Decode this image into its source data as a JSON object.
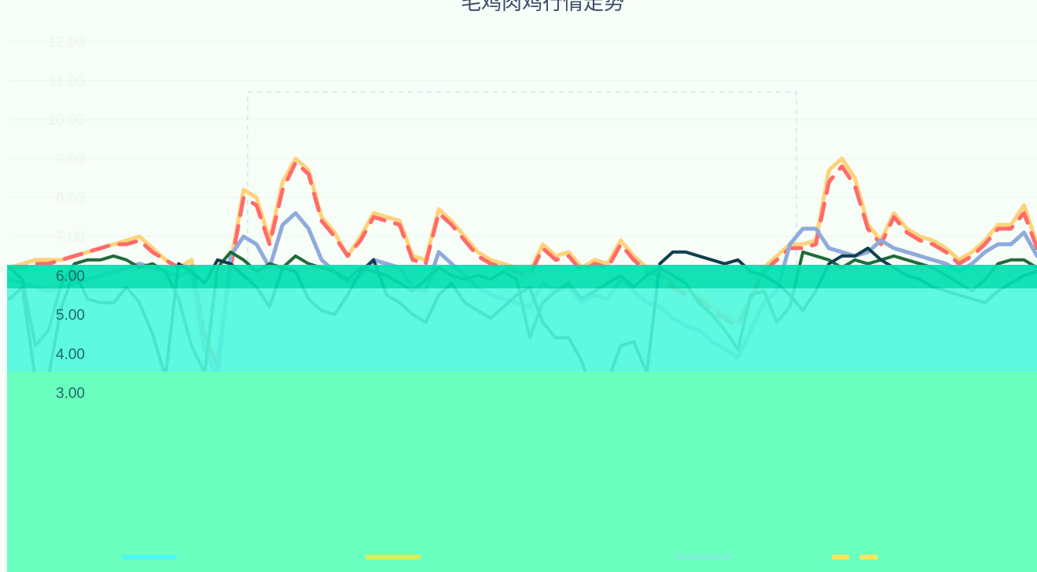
{
  "title": "毛鸡肉鸡行情走势",
  "chart_data": {
    "type": "line",
    "title": "毛鸡肉鸡行情走势",
    "xlabel": "",
    "ylabel": "",
    "ylim": [
      2,
      12
    ],
    "y_ticks": [
      "3.00",
      "4.00",
      "5.00",
      "6.00",
      "7.00",
      "8.00",
      "9.00",
      "10.00",
      "11.00",
      "12.00"
    ],
    "grid": true,
    "legend_position": "bottom",
    "series": [
      {
        "name": "",
        "color": "#ffd27a",
        "dash": false,
        "values": [
          6.2,
          6.3,
          6.4,
          6.4,
          6.4,
          6.5,
          6.6,
          6.7,
          6.8,
          6.9,
          7.0,
          6.7,
          6.4,
          6.2,
          6.4,
          4.5,
          3.8,
          6.3,
          8.2,
          8.0,
          6.9,
          8.4,
          9.0,
          8.7,
          7.5,
          7.1,
          6.5,
          7.0,
          7.6,
          7.5,
          7.4,
          6.5,
          6.4,
          7.7,
          7.4,
          7.0,
          6.6,
          6.4,
          6.3,
          6.2,
          6.1,
          6.8,
          6.5,
          6.6,
          6.2,
          6.4,
          6.3,
          6.9,
          6.5,
          6.2,
          6.1,
          5.8,
          5.6,
          5.5,
          5.2,
          5.0,
          4.8,
          5.5,
          6.2,
          6.5,
          6.8,
          6.8,
          6.9,
          8.7,
          9.0,
          8.5,
          7.3,
          6.9,
          7.6,
          7.2,
          7.0,
          6.9,
          6.7,
          6.4,
          6.6,
          6.9,
          7.3,
          7.3,
          7.8,
          6.8
        ]
      },
      {
        "name": "",
        "color": "#ff6b6b",
        "dash": true,
        "values": [
          6.2,
          6.2,
          6.3,
          6.3,
          6.4,
          6.5,
          6.6,
          6.7,
          6.8,
          6.8,
          6.9,
          6.6,
          6.4,
          6.2,
          6.3,
          4.4,
          3.7,
          6.2,
          8.0,
          7.8,
          6.8,
          8.2,
          8.9,
          8.6,
          7.4,
          7.0,
          6.5,
          6.9,
          7.5,
          7.4,
          7.3,
          6.4,
          6.3,
          7.6,
          7.3,
          6.9,
          6.5,
          6.3,
          6.2,
          6.1,
          6.0,
          6.7,
          6.4,
          6.5,
          6.1,
          6.3,
          6.2,
          6.8,
          6.4,
          6.1,
          6.0,
          5.7,
          5.5,
          5.4,
          5.1,
          4.9,
          4.7,
          5.4,
          6.1,
          6.4,
          6.7,
          6.7,
          6.8,
          8.4,
          8.8,
          8.3,
          7.2,
          6.8,
          7.5,
          7.1,
          6.9,
          6.8,
          6.6,
          6.3,
          6.5,
          6.8,
          7.2,
          7.2,
          7.6,
          6.7
        ]
      },
      {
        "name": "",
        "color": "#8faadc",
        "dash": false,
        "values": [
          5.9,
          5.8,
          5.7,
          5.6,
          5.7,
          5.8,
          5.9,
          6.0,
          6.1,
          6.2,
          6.3,
          6.2,
          6.1,
          6.0,
          6.1,
          4.1,
          3.4,
          6.5,
          7.0,
          6.8,
          6.2,
          7.3,
          7.6,
          7.2,
          6.4,
          6.1,
          5.8,
          6.0,
          6.4,
          6.3,
          6.2,
          5.7,
          5.6,
          6.6,
          6.3,
          6.0,
          5.7,
          5.5,
          5.4,
          5.3,
          5.2,
          5.8,
          5.6,
          5.7,
          5.3,
          5.5,
          5.4,
          5.9,
          5.6,
          5.3,
          5.2,
          4.9,
          4.7,
          4.6,
          4.3,
          4.1,
          3.9,
          4.6,
          5.3,
          5.6,
          6.8,
          7.2,
          7.2,
          6.7,
          6.6,
          6.5,
          6.6,
          6.9,
          6.7,
          6.6,
          6.5,
          6.4,
          6.3,
          6.1,
          6.3,
          6.6,
          6.8,
          6.8,
          7.1,
          6.5
        ]
      },
      {
        "name": "",
        "color": "#1f6b3a",
        "dash": false,
        "values": [
          6.2,
          5.9,
          4.2,
          4.6,
          5.8,
          6.3,
          6.4,
          6.4,
          6.5,
          6.4,
          6.2,
          6.3,
          6.1,
          5.4,
          4.2,
          3.5,
          6.2,
          6.6,
          6.4,
          6.1,
          6.3,
          6.2,
          6.5,
          6.3,
          6.2,
          6.1,
          5.9,
          6.2,
          6.1,
          6.0,
          5.8,
          5.6,
          5.9,
          6.2,
          6.0,
          5.9,
          6.0,
          5.9,
          6.1,
          5.9,
          4.4,
          5.3,
          5.6,
          5.8,
          5.4,
          5.6,
          5.8,
          6.0,
          5.7,
          6.0,
          6.2,
          6.0,
          5.8,
          5.3,
          5.0,
          4.6,
          4.1,
          5.5,
          5.6,
          4.8,
          5.2,
          6.6,
          6.5,
          6.4,
          6.2,
          6.4,
          6.3,
          6.4,
          6.5,
          6.4,
          6.3,
          6.2,
          6.0,
          5.8,
          5.6,
          5.9,
          6.3,
          6.4,
          6.4,
          6.2
        ]
      },
      {
        "name": "",
        "color": "#0f3f4e",
        "dash": false,
        "values": [
          5.4,
          5.7,
          3.3,
          3.4,
          5.2,
          6.1,
          5.4,
          5.3,
          5.3,
          5.7,
          5.3,
          4.5,
          3.4,
          6.3,
          6.1,
          5.8,
          6.4,
          6.3,
          6.0,
          5.7,
          5.2,
          6.2,
          6.1,
          5.4,
          5.1,
          5.0,
          5.5,
          6.1,
          6.4,
          5.5,
          5.3,
          5.0,
          4.8,
          5.5,
          5.8,
          5.3,
          5.1,
          4.9,
          5.2,
          5.5,
          5.7,
          4.8,
          4.4,
          4.4,
          3.8,
          2.8,
          3.3,
          4.2,
          4.3,
          3.5,
          6.3,
          6.6,
          6.6,
          6.5,
          6.4,
          6.3,
          6.4,
          6.1,
          6.0,
          5.8,
          5.5,
          5.1,
          5.6,
          6.3,
          6.5,
          6.5,
          6.7,
          6.4,
          6.2,
          6.0,
          5.9,
          5.7,
          5.6,
          5.5,
          5.4,
          5.3,
          5.6,
          5.8,
          6.0,
          6.1
        ]
      }
    ]
  }
}
